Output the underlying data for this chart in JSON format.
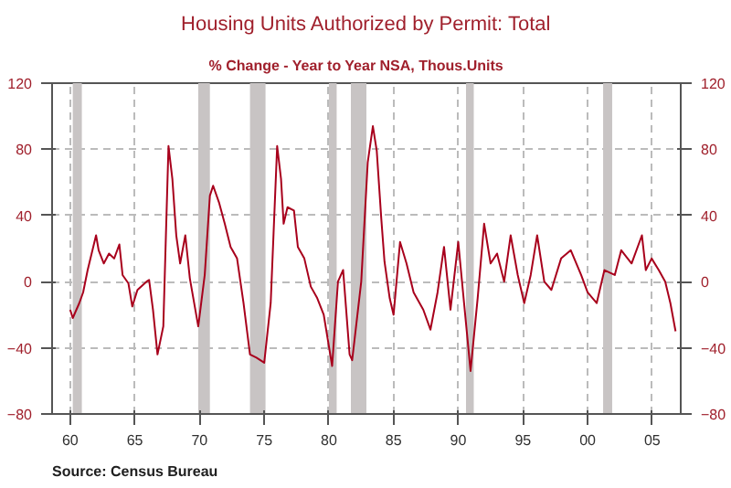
{
  "chart_data": {
    "type": "line",
    "title": "Housing Units Authorized by Permit: Total",
    "subtitle": "% Change - Year to Year      NSA, Thous.Units",
    "annotations": [
      "Source:  Census Bureau"
    ],
    "xlim": [
      1958.6,
      2007.2
    ],
    "ylim": [
      -80,
      120
    ],
    "y2lim": [
      -80,
      120
    ],
    "xticks": [
      {
        "value": 1960,
        "label": "60"
      },
      {
        "value": 1965,
        "label": "65"
      },
      {
        "value": 1970,
        "label": "70"
      },
      {
        "value": 1975,
        "label": "75"
      },
      {
        "value": 1980,
        "label": "80"
      },
      {
        "value": 1985,
        "label": "85"
      },
      {
        "value": 1990,
        "label": "90"
      },
      {
        "value": 1995,
        "label": "95"
      },
      {
        "value": 2000,
        "label": "00"
      },
      {
        "value": 2005,
        "label": "05"
      }
    ],
    "yticks": [
      -80,
      -40,
      0,
      40,
      80,
      120
    ],
    "y2ticks": [
      -80,
      -40,
      0,
      40,
      80,
      120
    ],
    "grid": true,
    "bands": [
      {
        "axis": "x",
        "from": 1960.2,
        "to": 1960.9,
        "color": "#c8c4c4"
      },
      {
        "axis": "x",
        "from": 1969.9,
        "to": 1970.8,
        "color": "#c8c4c4"
      },
      {
        "axis": "x",
        "from": 1973.9,
        "to": 1975.1,
        "color": "#c8c4c4"
      },
      {
        "axis": "x",
        "from": 1980.0,
        "to": 1980.6,
        "color": "#c8c4c4"
      },
      {
        "axis": "x",
        "from": 1981.7,
        "to": 1982.9,
        "color": "#c8c4c4"
      },
      {
        "axis": "x",
        "from": 1990.6,
        "to": 1991.2,
        "color": "#c8c4c4"
      },
      {
        "axis": "x",
        "from": 2001.2,
        "to": 2001.9,
        "color": "#c8c4c4"
      }
    ],
    "series": [
      {
        "color": "#a8001c",
        "x": [
          1960.0,
          1960.2,
          1960.7,
          1961.0,
          1961.35,
          1962.0,
          1962.2,
          1962.6,
          1963.0,
          1963.4,
          1963.8,
          1964.05,
          1964.5,
          1964.8,
          1965.2,
          1965.9,
          1966.1,
          1966.4,
          1966.75,
          1967.2,
          1967.4,
          1967.6,
          1967.9,
          1968.2,
          1968.5,
          1968.9,
          1969.25,
          1969.9,
          1970.4,
          1970.8,
          1971.05,
          1971.5,
          1971.95,
          1972.4,
          1972.9,
          1973.4,
          1973.9,
          1974.4,
          1975.0,
          1975.5,
          1976.0,
          1976.3,
          1976.5,
          1976.8,
          1977.3,
          1977.6,
          1978.1,
          1978.6,
          1979.1,
          1979.6,
          1980.25,
          1980.7,
          1981.1,
          1981.6,
          1981.8,
          1982.5,
          1983.0,
          1983.4,
          1983.7,
          1984.05,
          1984.3,
          1984.7,
          1985.0,
          1985.5,
          1986.0,
          1986.55,
          1987.3,
          1987.85,
          1988.4,
          1988.9,
          1989.4,
          1990.0,
          1990.45,
          1990.95,
          1991.5,
          1992.0,
          1992.5,
          1993.0,
          1993.55,
          1994.05,
          1994.6,
          1995.1,
          1995.6,
          1996.1,
          1996.65,
          1997.2,
          1997.95,
          1998.7,
          1999.5,
          2000.0,
          2000.7,
          2001.3,
          2002.1,
          2002.6,
          2003.4,
          2004.2,
          2004.5,
          2004.95,
          2005.5,
          2006.0,
          2006.4,
          2006.8
        ],
        "values": [
          -17,
          -22,
          -13,
          -6.5,
          7,
          28,
          19,
          11,
          17,
          14,
          22.5,
          4,
          -1,
          -15,
          -5,
          0,
          1,
          -17,
          -44,
          -27,
          28,
          82,
          62,
          28,
          11,
          28,
          2,
          -27,
          4,
          52,
          58,
          48,
          35,
          21,
          14,
          -13,
          -44,
          -46,
          -49,
          -13,
          82,
          62,
          35,
          45,
          43,
          21,
          14,
          -3,
          -10,
          -20,
          -51,
          0,
          7,
          -44,
          -47.5,
          0,
          72,
          94,
          79,
          38,
          12,
          -10,
          -20,
          24,
          11,
          -6.5,
          -17,
          -29,
          -6.5,
          21,
          -17,
          24,
          -13,
          -54,
          -10,
          35,
          11,
          17,
          0,
          28,
          4,
          -13,
          4,
          28,
          0,
          -5,
          14,
          19,
          4,
          -6.5,
          -13,
          7,
          4,
          19,
          11,
          28,
          7,
          14,
          7,
          0,
          -13,
          -30
        ]
      }
    ]
  }
}
